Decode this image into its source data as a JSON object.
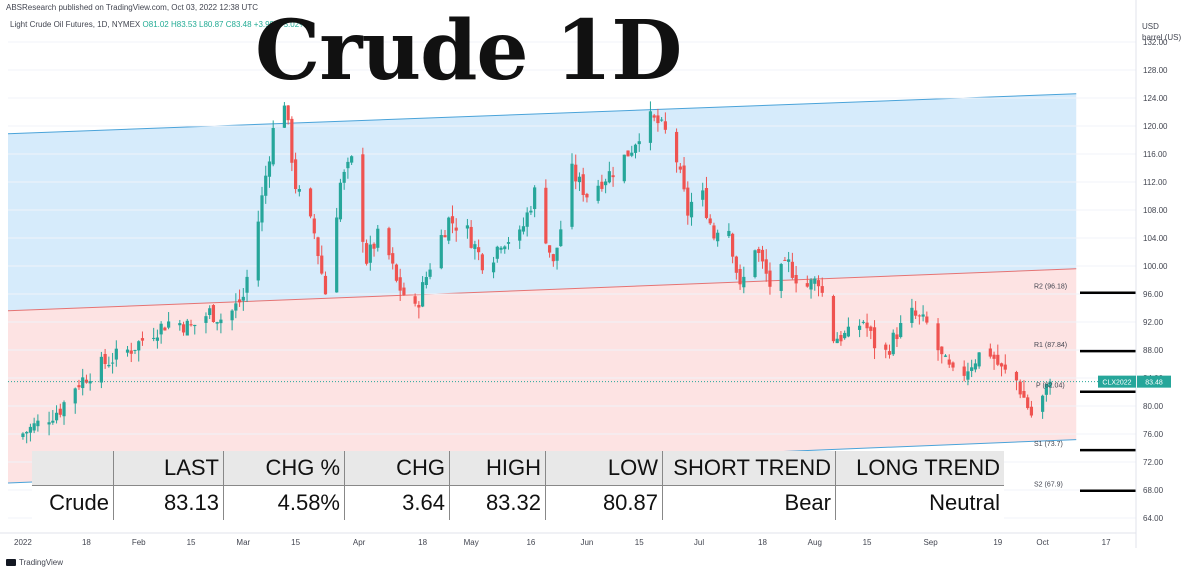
{
  "header": {
    "publisher": "ABSResearch published on TradingView.com, Oct 03, 2022 12:38 UTC",
    "symbol_desc": "Light Crude Oil Futures, 1D, NYMEX",
    "ohlc": {
      "o": "O81.02",
      "h": "H83.53",
      "l": "L80.87",
      "c": "C83.48"
    },
    "change": "+3.99 (+5.02%)",
    "big_title": "Crude 1D",
    "unit_line1": "USD",
    "unit_line2": "barrel (US)"
  },
  "footer": {
    "brand": "TradingView"
  },
  "price_tag": {
    "symbol": "CLX2022",
    "value": "83.48"
  },
  "colors": {
    "up": "#26a69a",
    "down": "#ef5350",
    "channel_blue": "#cfe8fa",
    "channel_red": "#fde0e0",
    "channel_line_blue": "#4aa3d9",
    "channel_line_red": "#e57373"
  },
  "table": {
    "headers": [
      "",
      "LAST",
      "CHG %",
      "CHG",
      "HIGH",
      "LOW",
      "SHORT TREND",
      "LONG TREND"
    ],
    "row": [
      "Crude",
      "83.13",
      "4.58%",
      "3.64",
      "83.32",
      "80.87",
      "Bear",
      "Neutral"
    ]
  },
  "chart_data": {
    "type": "candlestick",
    "title": "Crude 1D",
    "ylabel": "USD barrel (US)",
    "ylim": [
      62,
      136
    ],
    "y_ticks": [
      64,
      68,
      72,
      76,
      80,
      84,
      88,
      92,
      96,
      100,
      104,
      108,
      112,
      116,
      120,
      124,
      128,
      132
    ],
    "y_tick_labels": [
      "64.00",
      "68.00",
      "72.00",
      "76.00",
      "80.00",
      "84.00",
      "88.00",
      "92.00",
      "96.00",
      "100.00",
      "104.00",
      "108.00",
      "112.00",
      "116.00",
      "120.00",
      "124.00",
      "128.00",
      "132.00"
    ],
    "x_tick_labels": [
      "2022",
      "18",
      "Feb",
      "15",
      "Mar",
      "15",
      "Apr",
      "18",
      "May",
      "16",
      "Jun",
      "15",
      "Jul",
      "18",
      "Aug",
      "15",
      "Sep",
      "19",
      "Oct",
      "17"
    ],
    "x_tick_days": [
      0,
      17,
      31,
      45,
      59,
      73,
      90,
      107,
      120,
      136,
      151,
      165,
      181,
      198,
      212,
      226,
      243,
      261,
      273,
      290
    ],
    "x_domain_days": [
      -4,
      298
    ],
    "pivot_levels": [
      {
        "label": "R2 (96.18)",
        "value": 96.18
      },
      {
        "label": "R1 (87.84)",
        "value": 87.84
      },
      {
        "label": "P (82.04)",
        "value": 82.04
      },
      {
        "label": "S1 (73.7)",
        "value": 73.7
      },
      {
        "label": "S2 (67.9)",
        "value": 67.9
      }
    ],
    "channel": {
      "upper": {
        "start_day": -4,
        "start_value": 118.9,
        "end_day": 282,
        "end_value": 124.6
      },
      "middle": {
        "start_day": -4,
        "start_value": 93.6,
        "end_day": 282,
        "end_value": 99.6
      },
      "lower": {
        "start_day": -4,
        "start_value": 69.0,
        "end_day": 282,
        "end_value": 75.2
      }
    },
    "last_price": 83.48,
    "close_path": [
      [
        0,
        76.1
      ],
      [
        5,
        77.8
      ],
      [
        10,
        79.6
      ],
      [
        14,
        82.9
      ],
      [
        19,
        85.2
      ],
      [
        24,
        86.8
      ],
      [
        29,
        88.2
      ],
      [
        35,
        90.7
      ],
      [
        40,
        92.3
      ],
      [
        45,
        91.2
      ],
      [
        50,
        93.4
      ],
      [
        54,
        92.2
      ],
      [
        59,
        95.6
      ],
      [
        63,
        106.5
      ],
      [
        67,
        119.3
      ],
      [
        70,
        123.7
      ],
      [
        73,
        111.5
      ],
      [
        78,
        104.7
      ],
      [
        81,
        96.2
      ],
      [
        85,
        111.8
      ],
      [
        88,
        114.9
      ],
      [
        92,
        100.9
      ],
      [
        96,
        105.2
      ],
      [
        100,
        97.6
      ],
      [
        105,
        93.6
      ],
      [
        110,
        101.8
      ],
      [
        114,
        106.6
      ],
      [
        119,
        104.9
      ],
      [
        124,
        99.6
      ],
      [
        128,
        103.7
      ],
      [
        133,
        104.2
      ],
      [
        137,
        110.5
      ],
      [
        142,
        100.1
      ],
      [
        147,
        113.4
      ],
      [
        151,
        110.2
      ],
      [
        155,
        112.3
      ],
      [
        159,
        114.1
      ],
      [
        163,
        116.9
      ],
      [
        167,
        121.2
      ],
      [
        170,
        120.4
      ],
      [
        174,
        117.6
      ],
      [
        178,
        107.6
      ],
      [
        181,
        111.8
      ],
      [
        185,
        104.3
      ],
      [
        188,
        108.4
      ],
      [
        192,
        96.5
      ],
      [
        196,
        102.9
      ],
      [
        200,
        97.3
      ],
      [
        205,
        100.2
      ],
      [
        209,
        96.8
      ],
      [
        213,
        98.1
      ],
      [
        217,
        89.8
      ],
      [
        221,
        90.1
      ],
      [
        225,
        92.2
      ],
      [
        230,
        86.6
      ],
      [
        234,
        90.5
      ],
      [
        238,
        93.1
      ],
      [
        242,
        91.6
      ],
      [
        246,
        86.8
      ],
      [
        250,
        83.5
      ],
      [
        254,
        86.2
      ],
      [
        258,
        88.5
      ],
      [
        262,
        85.1
      ],
      [
        266,
        83.6
      ],
      [
        270,
        78.7
      ],
      [
        273,
        81.1
      ],
      [
        275,
        83.48
      ]
    ]
  }
}
